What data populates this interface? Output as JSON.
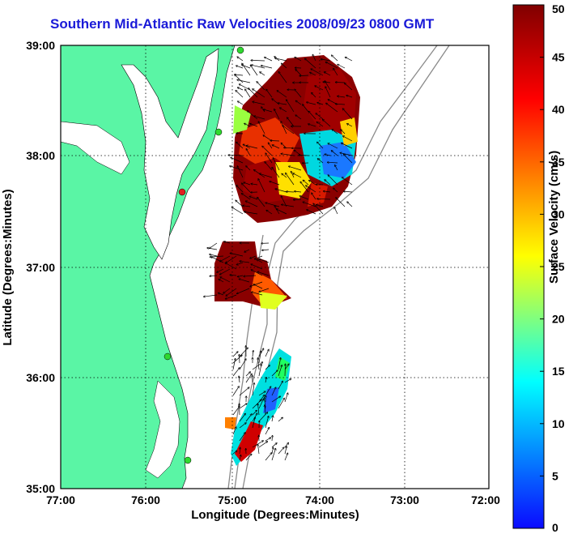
{
  "title": "Southern Mid-Atlantic Raw Velocities 2008/09/23 0800 GMT",
  "x_axis": {
    "label": "Longitude (Degrees:Minutes)",
    "ticks": [
      "77:00",
      "76:00",
      "75:00",
      "74:00",
      "73:00",
      "72:00"
    ]
  },
  "y_axis": {
    "label": "Latitude (Degrees:Minutes)",
    "ticks": [
      "39:00",
      "38:00",
      "37:00",
      "36:00",
      "35:00"
    ]
  },
  "colorbar": {
    "label": "Surface Velocity (cm/s)",
    "ticks": [
      "50",
      "45",
      "40",
      "35",
      "30",
      "25",
      "20",
      "15",
      "10",
      "5",
      "0"
    ],
    "min": 0,
    "max": 50,
    "colors": [
      "#0a0aff",
      "#00ffff",
      "#ffff00",
      "#ff0000",
      "#800000"
    ]
  },
  "colors": {
    "land": "#5af5a5",
    "title": "#1a1ad8",
    "bathymetry": "#8a8a8a"
  },
  "chart_data": {
    "type": "heatmap",
    "title": "Southern Mid-Atlantic Raw Velocities 2008/09/23 0800 GMT",
    "xlabel": "Longitude (Degrees:Minutes)",
    "ylabel": "Latitude (Degrees:Minutes)",
    "xlim": [
      "77:00",
      "72:00"
    ],
    "ylim": [
      "35:00",
      "39:00"
    ],
    "grid": true,
    "colorbar_range": [
      0,
      50
    ],
    "colorbar_label": "Surface Velocity (cm/s)"
  }
}
